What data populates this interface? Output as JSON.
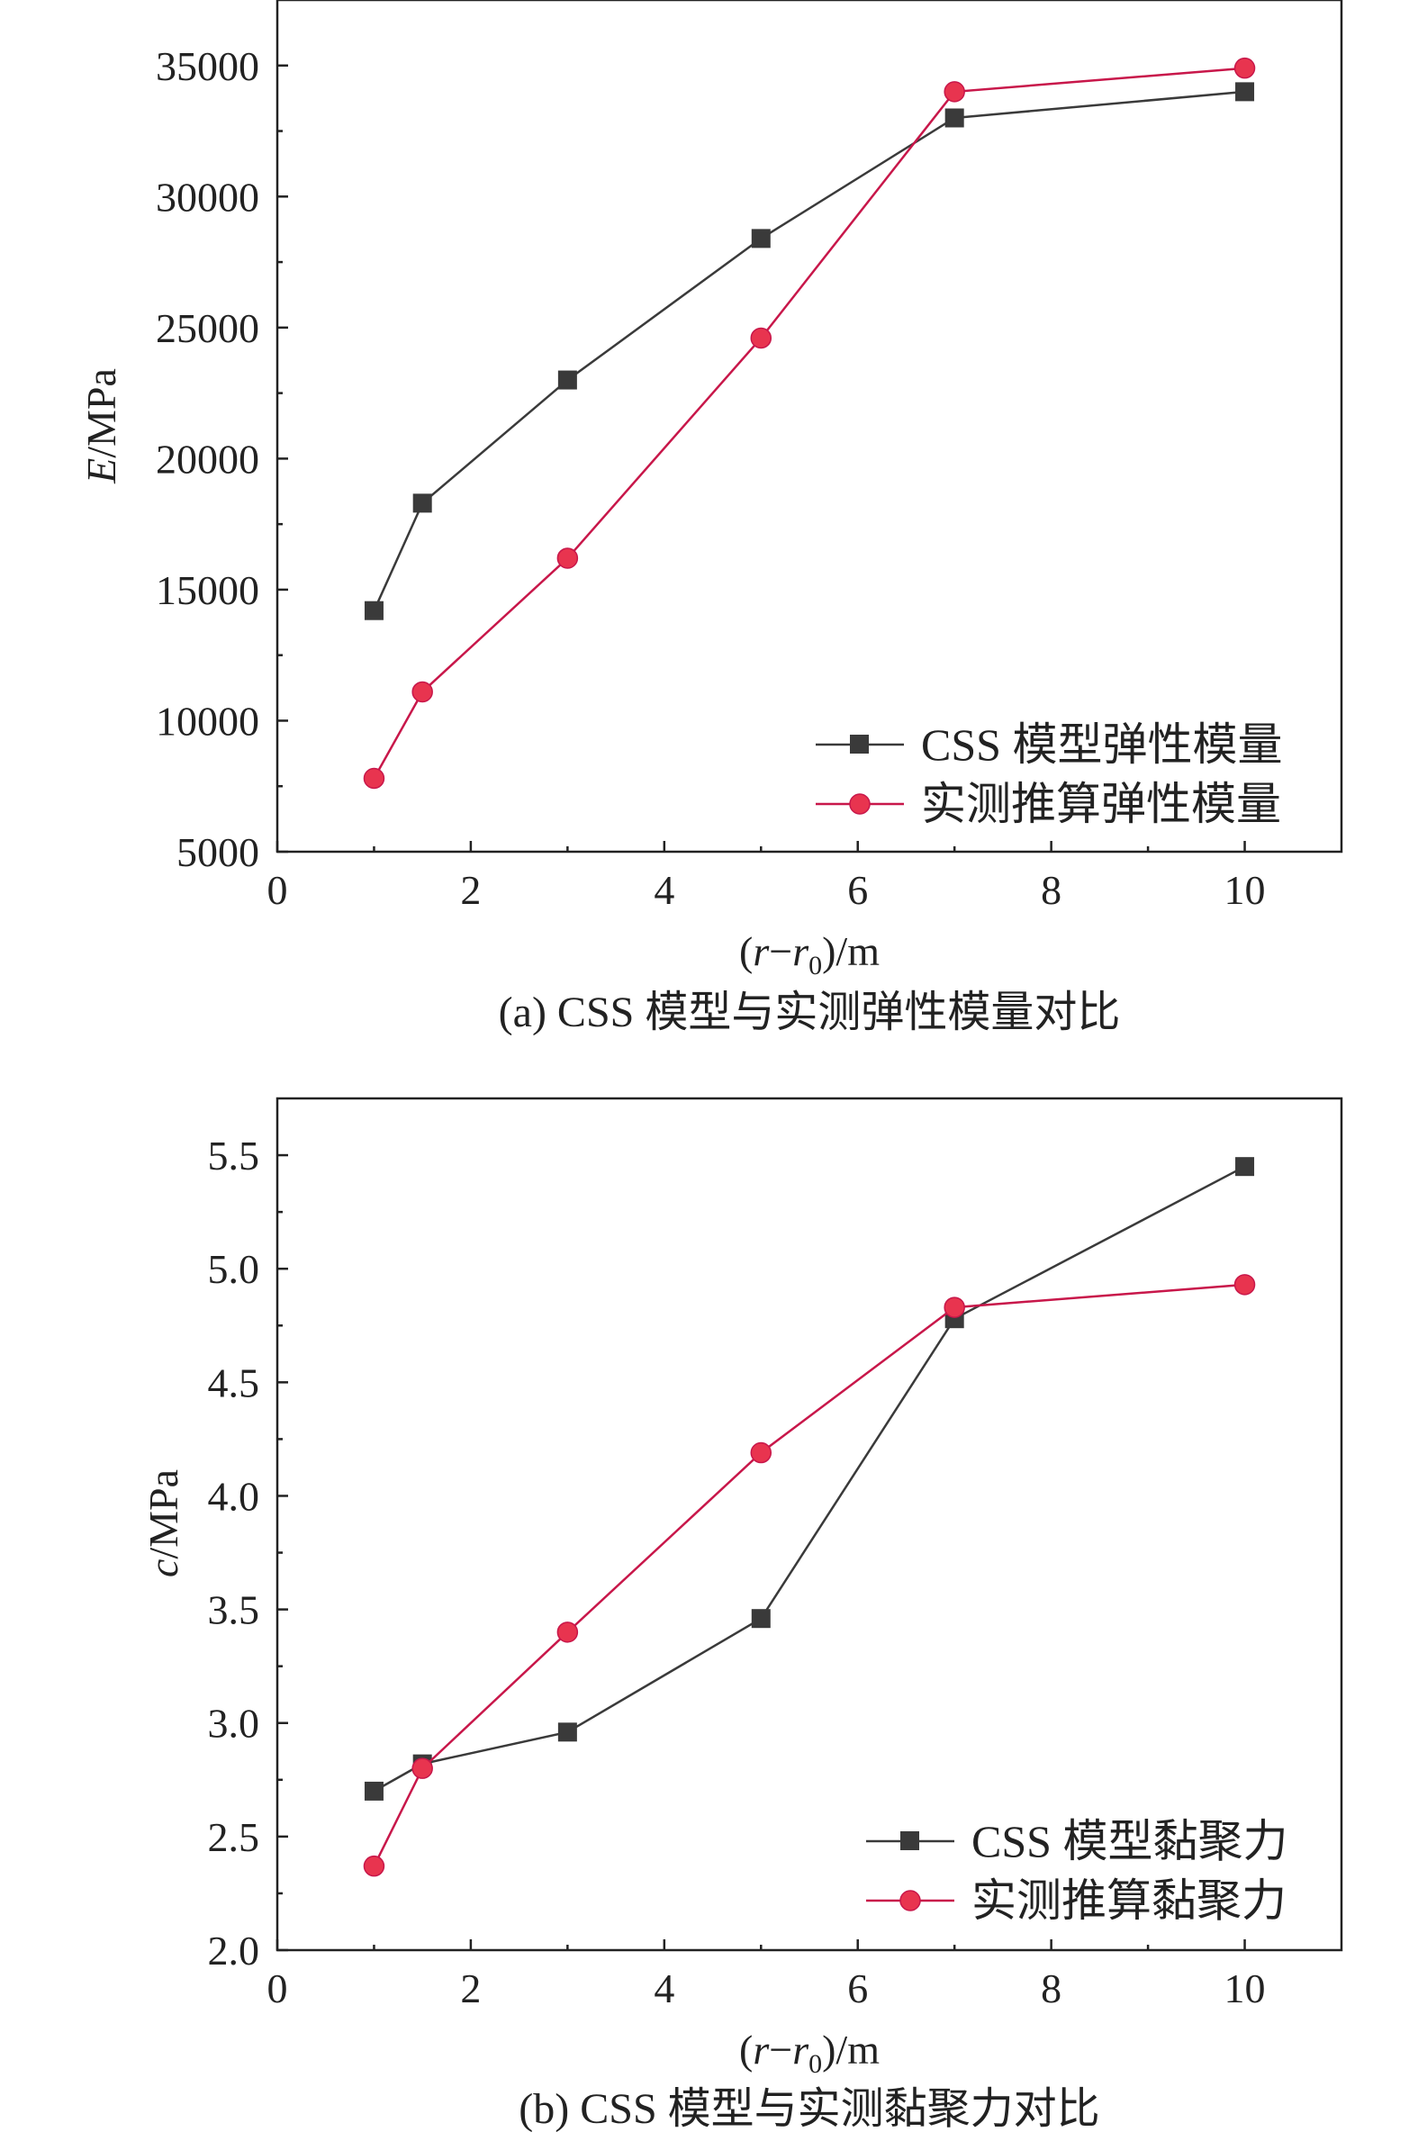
{
  "chart_data": [
    {
      "type": "line",
      "caption": "(a) CSS 模型与实测弹性模量对比",
      "xlabel": "(r−r0)/m",
      "xlabel_parts": {
        "open": "(",
        "r": "r",
        "minus": "−",
        "r0": "r",
        "sub": "0",
        "close": ")/m"
      },
      "ylabel": "E/MPa",
      "ylabel_parts": {
        "var": "E",
        "unit": "/MPa"
      },
      "xlim": [
        0,
        11
      ],
      "ylim": [
        5000,
        37500
      ],
      "xticks": [
        0,
        2,
        4,
        6,
        8,
        10
      ],
      "xtick_labels": [
        "0",
        "2",
        "4",
        "6",
        "8",
        "10"
      ],
      "yticks": [
        5000,
        10000,
        15000,
        20000,
        25000,
        30000,
        35000
      ],
      "ytick_labels": [
        "5000",
        "10000",
        "15000",
        "20000",
        "25000",
        "30000",
        "35000"
      ],
      "legend_position": "bottom-right",
      "series": [
        {
          "name": "CSS 模型弹性模量",
          "color": "#3a3a3a",
          "marker": "square",
          "x": [
            1,
            1.5,
            3,
            5,
            7,
            10
          ],
          "y": [
            14200,
            18300,
            23000,
            28400,
            33000,
            34000
          ]
        },
        {
          "name": "实测推算弹性模量",
          "color": "#c8174a",
          "marker": "circle",
          "marker_fill": "#e8344f",
          "x": [
            1,
            1.5,
            3,
            5,
            7,
            10
          ],
          "y": [
            7800,
            11100,
            16200,
            24600,
            34000,
            34900
          ]
        }
      ]
    },
    {
      "type": "line",
      "caption": "(b) CSS 模型与实测黏聚力对比",
      "xlabel": "(r−r0)/m",
      "xlabel_parts": {
        "open": "(",
        "r": "r",
        "minus": "−",
        "r0": "r",
        "sub": "0",
        "close": ")/m"
      },
      "ylabel": "c/MPa",
      "ylabel_parts": {
        "var": "c",
        "unit": "/MPa"
      },
      "xlim": [
        0,
        11
      ],
      "ylim": [
        2.0,
        5.75
      ],
      "xticks": [
        0,
        2,
        4,
        6,
        8,
        10
      ],
      "xtick_labels": [
        "0",
        "2",
        "4",
        "6",
        "8",
        "10"
      ],
      "yticks": [
        2.0,
        2.5,
        3.0,
        3.5,
        4.0,
        4.5,
        5.0,
        5.5
      ],
      "ytick_labels": [
        "2.0",
        "2.5",
        "3.0",
        "3.5",
        "4.0",
        "4.5",
        "5.0",
        "5.5"
      ],
      "legend_position": "bottom-right",
      "series": [
        {
          "name": "CSS 模型黏聚力",
          "color": "#3a3a3a",
          "marker": "square",
          "x": [
            1,
            1.5,
            3,
            5,
            7,
            10
          ],
          "y": [
            2.7,
            2.82,
            2.96,
            3.46,
            4.78,
            5.45
          ]
        },
        {
          "name": "实测推算黏聚力",
          "color": "#c8174a",
          "marker": "circle",
          "marker_fill": "#e8344f",
          "x": [
            1,
            1.5,
            3,
            5,
            7,
            10
          ],
          "y": [
            2.37,
            2.8,
            3.4,
            4.19,
            4.83,
            4.93
          ]
        }
      ]
    }
  ]
}
